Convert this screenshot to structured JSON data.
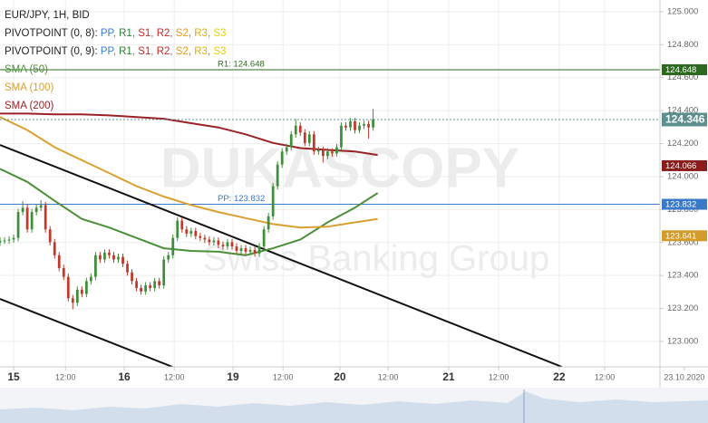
{
  "chart_data": {
    "type": "candlestick",
    "title": "EUR/JPY, 1H, BID",
    "pivot_legends": [
      {
        "label": "PIVOTPOINT (0, 8):",
        "separator": ", ",
        "items": [
          {
            "name": "PP",
            "color": "#3b7dd8"
          },
          {
            "name": "R1",
            "color": "#2e7d32"
          },
          {
            "name": "S1",
            "color": "#c62828"
          },
          {
            "name": "R2",
            "color": "#c62828"
          },
          {
            "name": "S2",
            "color": "#e39a1e"
          },
          {
            "name": "R3",
            "color": "#e0b000"
          },
          {
            "name": "S3",
            "color": "#e6d000"
          }
        ]
      },
      {
        "label": "PIVOTPOINT (0, 9):",
        "separator": ", ",
        "items": [
          {
            "name": "PP",
            "color": "#3b7dd8"
          },
          {
            "name": "R1",
            "color": "#2e7d32"
          },
          {
            "name": "S1",
            "color": "#c62828"
          },
          {
            "name": "R2",
            "color": "#c62828"
          },
          {
            "name": "S2",
            "color": "#e39a1e"
          },
          {
            "name": "R3",
            "color": "#e0b000"
          },
          {
            "name": "S3",
            "color": "#e6d000"
          }
        ]
      }
    ],
    "watermark": [
      "DUKASCOPY",
      "Swiss Banking Group"
    ],
    "up_color": "#3f8f3a",
    "down_color": "#c0392b",
    "x": [
      -3,
      -2,
      -1,
      0,
      1,
      2,
      3,
      4,
      5,
      6,
      7,
      8,
      9,
      10,
      11,
      12,
      13,
      14,
      15,
      16,
      17,
      18,
      19,
      20,
      21,
      22,
      23,
      24,
      25,
      26,
      27,
      28,
      29,
      30,
      31,
      32,
      33,
      34,
      35,
      36,
      37,
      38,
      39,
      40,
      41,
      42,
      43,
      44,
      45,
      46,
      47,
      48,
      49,
      50,
      51,
      52,
      53,
      54,
      55,
      56,
      57,
      58,
      59,
      60,
      61,
      62,
      63,
      64,
      65,
      66,
      67,
      68,
      69,
      70,
      71,
      72,
      73,
      74,
      75,
      76,
      77,
      78,
      79
    ],
    "ohlc": [
      [
        123.6,
        123.632,
        123.58,
        123.612
      ],
      [
        123.612,
        123.632,
        123.592,
        123.612
      ],
      [
        123.612,
        123.638,
        123.592,
        123.618
      ],
      [
        123.618,
        123.648,
        123.598,
        123.628
      ],
      [
        123.628,
        123.805,
        123.608,
        123.785
      ],
      [
        123.785,
        123.851,
        123.765,
        123.811
      ],
      [
        123.811,
        123.831,
        123.66,
        123.68
      ],
      [
        123.68,
        123.805,
        123.66,
        123.785
      ],
      [
        123.785,
        123.831,
        123.765,
        123.811
      ],
      [
        123.811,
        123.857,
        123.791,
        123.827
      ],
      [
        123.827,
        123.847,
        123.66,
        123.68
      ],
      [
        123.68,
        123.7,
        123.582,
        123.602
      ],
      [
        123.602,
        123.622,
        123.503,
        123.523
      ],
      [
        123.523,
        123.543,
        123.425,
        123.445
      ],
      [
        123.445,
        123.465,
        123.372,
        123.392
      ],
      [
        123.392,
        123.412,
        123.242,
        123.262
      ],
      [
        123.262,
        123.282,
        123.195,
        123.235
      ],
      [
        123.235,
        123.334,
        123.215,
        123.314
      ],
      [
        123.314,
        123.334,
        123.268,
        123.288
      ],
      [
        123.288,
        123.386,
        123.268,
        123.366
      ],
      [
        123.366,
        123.412,
        123.346,
        123.392
      ],
      [
        123.392,
        123.543,
        123.372,
        123.523
      ],
      [
        123.523,
        123.543,
        123.477,
        123.497
      ],
      [
        123.497,
        123.559,
        123.477,
        123.539
      ],
      [
        123.539,
        123.559,
        123.503,
        123.523
      ],
      [
        123.523,
        123.543,
        123.477,
        123.497
      ],
      [
        123.497,
        123.533,
        123.477,
        123.513
      ],
      [
        123.513,
        123.533,
        123.451,
        123.471
      ],
      [
        123.471,
        123.491,
        123.399,
        123.419
      ],
      [
        123.419,
        123.439,
        123.346,
        123.366
      ],
      [
        123.366,
        123.386,
        123.304,
        123.324
      ],
      [
        123.324,
        123.344,
        123.283,
        123.303
      ],
      [
        123.303,
        123.36,
        123.283,
        123.34
      ],
      [
        123.34,
        123.36,
        123.304,
        123.324
      ],
      [
        123.324,
        123.386,
        123.304,
        123.366
      ],
      [
        123.366,
        123.386,
        123.32,
        123.34
      ],
      [
        123.34,
        123.517,
        123.32,
        123.497
      ],
      [
        123.497,
        123.543,
        123.477,
        123.523
      ],
      [
        123.523,
        123.648,
        123.503,
        123.628
      ],
      [
        123.628,
        123.753,
        123.608,
        123.733
      ],
      [
        123.733,
        123.753,
        123.66,
        123.68
      ],
      [
        123.68,
        123.7,
        123.634,
        123.654
      ],
      [
        123.654,
        123.69,
        123.634,
        123.67
      ],
      [
        123.67,
        123.69,
        123.619,
        123.639
      ],
      [
        123.639,
        123.659,
        123.608,
        123.628
      ],
      [
        123.628,
        123.648,
        123.598,
        123.618
      ],
      [
        123.618,
        123.638,
        123.582,
        123.602
      ],
      [
        123.602,
        123.632,
        123.582,
        123.612
      ],
      [
        123.612,
        123.632,
        123.566,
        123.586
      ],
      [
        123.586,
        123.606,
        123.556,
        123.576
      ],
      [
        123.576,
        123.622,
        123.556,
        123.602
      ],
      [
        123.602,
        123.622,
        123.556,
        123.576
      ],
      [
        123.576,
        123.596,
        123.529,
        123.549
      ],
      [
        123.549,
        123.585,
        123.529,
        123.565
      ],
      [
        123.565,
        123.585,
        123.524,
        123.544
      ],
      [
        123.544,
        123.575,
        123.524,
        123.555
      ],
      [
        123.555,
        123.575,
        123.514,
        123.534
      ],
      [
        123.534,
        123.596,
        123.514,
        123.576
      ],
      [
        123.576,
        123.7,
        123.556,
        123.68
      ],
      [
        123.68,
        123.779,
        123.66,
        123.759
      ],
      [
        123.759,
        123.962,
        123.739,
        123.942
      ],
      [
        123.942,
        124.093,
        123.922,
        124.073
      ],
      [
        124.073,
        124.172,
        124.053,
        124.152
      ],
      [
        124.152,
        124.198,
        124.132,
        124.178
      ],
      [
        124.178,
        124.276,
        124.158,
        124.256
      ],
      [
        124.256,
        124.349,
        124.236,
        124.309
      ],
      [
        124.309,
        124.329,
        124.247,
        124.267
      ],
      [
        124.267,
        124.287,
        124.184,
        124.204
      ],
      [
        124.204,
        124.276,
        124.184,
        124.256
      ],
      [
        124.256,
        124.276,
        124.132,
        124.152
      ],
      [
        124.152,
        124.182,
        124.132,
        124.162
      ],
      [
        124.162,
        124.182,
        124.085,
        124.125
      ],
      [
        124.125,
        124.172,
        124.105,
        124.152
      ],
      [
        124.152,
        124.172,
        124.121,
        124.141
      ],
      [
        124.141,
        124.198,
        124.121,
        124.178
      ],
      [
        124.178,
        124.329,
        124.158,
        124.309
      ],
      [
        124.309,
        124.329,
        124.278,
        124.298
      ],
      [
        124.298,
        124.355,
        124.278,
        124.335
      ],
      [
        124.335,
        124.355,
        124.262,
        124.282
      ],
      [
        124.282,
        124.329,
        124.262,
        124.309
      ],
      [
        124.309,
        124.339,
        124.289,
        124.319
      ],
      [
        124.319,
        124.339,
        124.23,
        124.298
      ],
      [
        124.298,
        124.41,
        124.278,
        124.346
      ]
    ],
    "series": [
      {
        "name": "SMA (50)",
        "color": "#4b8f3a",
        "x": [
          -3,
          3,
          9,
          15,
          21,
          27,
          33,
          39,
          45,
          51,
          57,
          63,
          69,
          75,
          80
        ],
        "values": [
          124.047,
          123.968,
          123.853,
          123.743,
          123.691,
          123.628,
          123.565,
          123.549,
          123.544,
          123.523,
          123.565,
          123.618,
          123.722,
          123.811,
          123.9
        ]
      },
      {
        "name": "SMA (100)",
        "color": "#d9a030",
        "x": [
          -3,
          3,
          9,
          15,
          21,
          27,
          33,
          39,
          45,
          51,
          57,
          63,
          69,
          75,
          80
        ],
        "values": [
          124.361,
          124.282,
          124.178,
          124.099,
          124.021,
          123.942,
          123.879,
          123.827,
          123.785,
          123.748,
          123.712,
          123.691,
          123.696,
          123.722,
          123.743
        ]
      },
      {
        "name": "SMA (200)",
        "color": "#9b2226",
        "x": [
          -3,
          3,
          9,
          15,
          21,
          27,
          33,
          39,
          45,
          51,
          57,
          63,
          69,
          75,
          80
        ],
        "values": [
          124.382,
          124.382,
          124.377,
          124.377,
          124.371,
          124.361,
          124.351,
          124.324,
          124.298,
          124.256,
          124.204,
          124.173,
          124.162,
          124.152,
          124.131
        ]
      }
    ],
    "trendlines": [
      {
        "x": [
          -3,
          120.5
        ],
        "values": [
          124.192,
          122.846
        ],
        "color": "#111111"
      },
      {
        "x": [
          -3,
          34.9
        ],
        "values": [
          123.258,
          122.846
        ],
        "color": "#111111"
      }
    ],
    "levels": [
      {
        "label": "R1: 124.648",
        "value": 124.648,
        "color": "#2d6a1f"
      },
      {
        "label": "PP: 123.832",
        "value": 123.832,
        "color": "#3a78c8"
      }
    ],
    "price_tags": [
      {
        "value": 124.648,
        "color": "#2d6a1f"
      },
      {
        "value": 124.346,
        "color": "#5e8f8f",
        "line": "dotted"
      },
      {
        "value": 124.066,
        "color": "#8b1c1c"
      },
      {
        "value": 123.832,
        "color": "#3a78c8"
      },
      {
        "value": 123.641,
        "color": "#d29b2a"
      }
    ],
    "xlim": [
      -3,
      152.6
    ],
    "xticks": [
      {
        "value": 0,
        "label": "15"
      },
      {
        "value": 11.4,
        "label": "12:00"
      },
      {
        "value": 24.3,
        "label": "16"
      },
      {
        "value": 35.3,
        "label": "12:00"
      },
      {
        "value": 48.2,
        "label": "19"
      },
      {
        "value": 59.2,
        "label": "12:00"
      },
      {
        "value": 71.7,
        "label": "20"
      },
      {
        "value": 82.3,
        "label": "12:00"
      },
      {
        "value": 95.6,
        "label": "21"
      },
      {
        "value": 106.6,
        "label": "12:00"
      },
      {
        "value": 119.9,
        "label": "22"
      },
      {
        "value": 129.9,
        "label": "12:00"
      },
      {
        "value": 147.4,
        "label": "23.10.2020"
      }
    ],
    "ylim": [
      122.846,
      125.071
    ],
    "yticks": [
      {
        "value": 123,
        "label": "123.000"
      },
      {
        "value": 123.2,
        "label": "123.200"
      },
      {
        "value": 123.4,
        "label": "123.400"
      },
      {
        "value": 123.6,
        "label": "123.600"
      },
      {
        "value": 123.8,
        "label": "123.800"
      },
      {
        "value": 124,
        "label": "124.000"
      },
      {
        "value": 124.2,
        "label": "124.200"
      },
      {
        "value": 124.4,
        "label": "124.400"
      },
      {
        "value": 124.6,
        "label": "124.600"
      },
      {
        "value": 124.8,
        "label": "124.800"
      },
      {
        "value": 125,
        "label": "125.000"
      }
    ],
    "grid": true
  }
}
